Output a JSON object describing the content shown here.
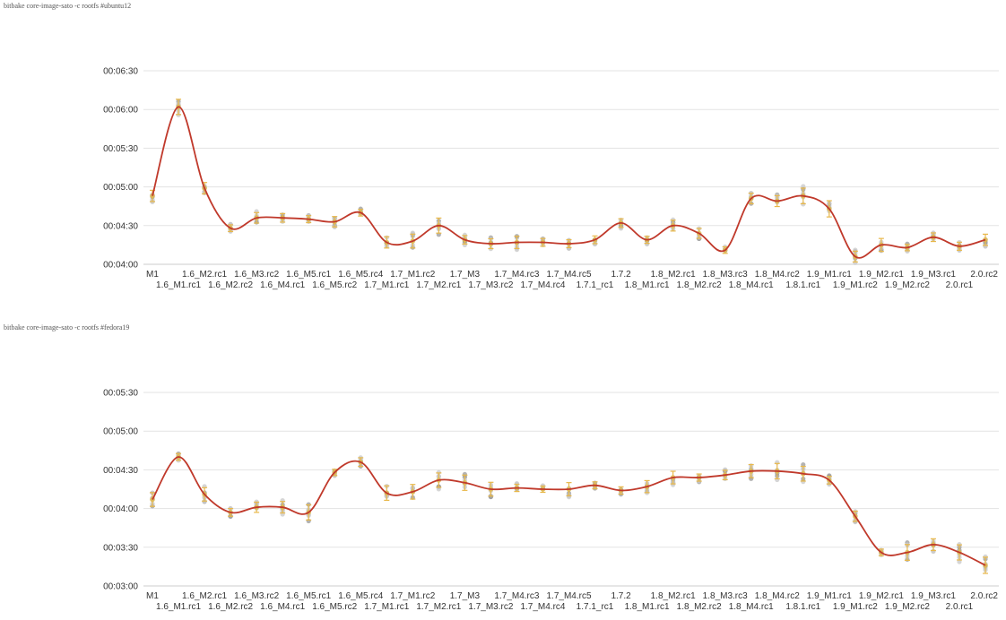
{
  "chart_data": [
    {
      "type": "line",
      "title": "bitbake core-image-sato -c rootfs #ubuntu12",
      "ylabel": "",
      "xlabel": "",
      "yticks": [
        "00:04:00",
        "00:04:30",
        "00:05:00",
        "00:05:30",
        "00:06:00",
        "00:06:30"
      ],
      "ylim_seconds": [
        240,
        390
      ],
      "categories": [
        "M1",
        "1.6_M1.rc1",
        "1.6_M2.rc1",
        "1.6_M2.rc2",
        "1.6_M3.rc2",
        "1.6_M4.rc1",
        "1.6_M5.rc1",
        "1.6_M5.rc2",
        "1.6_M5.rc4",
        "1.7_M1.rc1",
        "1.7_M1.rc2",
        "1.7_M2.rc1",
        "1.7_M3",
        "1.7_M3.rc2",
        "1.7_M4.rc3",
        "1.7_M4.rc4",
        "1.7_M4.rc5",
        "1.7.1_rc1",
        "1.7.2",
        "1.8_M1.rc1",
        "1.8_M2.rc1",
        "1.8_M2.rc2",
        "1.8_M3.rc3",
        "1.8_M4.rc1",
        "1.8_M4.rc2",
        "1.8.1.rc1",
        "1.9_M1.rc1",
        "1.9_M1.rc2",
        "1.9_M2.rc1",
        "1.9_M2.rc2",
        "1.9_M3.rc1",
        "2.0.rc1",
        "2.0.rc2"
      ],
      "series": [
        {
          "values": [
            293,
            362,
            299,
            268,
            276,
            276,
            275,
            273,
            280,
            257,
            258,
            270,
            259,
            256,
            257,
            257,
            256,
            259,
            272,
            259,
            270,
            264,
            251,
            291,
            289,
            293,
            283,
            246,
            255,
            253,
            261,
            254,
            259
          ],
          "color": "#c0392b"
        }
      ],
      "error_bars_color": "#e8b84a",
      "points_color": "#b0b0b0"
    },
    {
      "type": "line",
      "title": "bitbake core-image-sato -c rootfs #fedora19",
      "ylabel": "",
      "xlabel": "",
      "yticks": [
        "00:03:00",
        "00:03:30",
        "00:04:00",
        "00:04:30",
        "00:05:00",
        "00:05:30"
      ],
      "ylim_seconds": [
        180,
        330
      ],
      "categories": [
        "M1",
        "1.6_M1.rc1",
        "1.6_M2.rc1",
        "1.6_M2.rc2",
        "1.6_M3.rc2",
        "1.6_M4.rc1",
        "1.6_M5.rc1",
        "1.6_M5.rc2",
        "1.6_M5.rc4",
        "1.7_M1.rc1",
        "1.7_M1.rc2",
        "1.7_M2.rc1",
        "1.7_M3",
        "1.7_M3.rc2",
        "1.7_M4.rc3",
        "1.7_M4.rc4",
        "1.7_M4.rc5",
        "1.7.1_rc1",
        "1.7.2",
        "1.8_M1.rc1",
        "1.8_M2.rc1",
        "1.8_M2.rc2",
        "1.8_M3.rc3",
        "1.8_M4.rc1",
        "1.8_M4.rc2",
        "1.8.1.rc1",
        "1.9_M1.rc1",
        "1.9_M1.rc2",
        "1.9_M2.rc1",
        "1.9_M2.rc2",
        "1.9_M3.rc1",
        "2.0.rc1",
        "2.0.rc2"
      ],
      "series": [
        {
          "values": [
            247,
            280,
            251,
            237,
            241,
            241,
            237,
            268,
            276,
            252,
            253,
            262,
            260,
            255,
            256,
            255,
            255,
            258,
            254,
            257,
            264,
            264,
            266,
            269,
            269,
            267,
            262,
            234,
            206,
            206,
            212,
            206,
            196
          ],
          "color": "#c0392b"
        }
      ],
      "error_bars_color": "#e8b84a",
      "points_color": "#b0b0b0"
    }
  ]
}
